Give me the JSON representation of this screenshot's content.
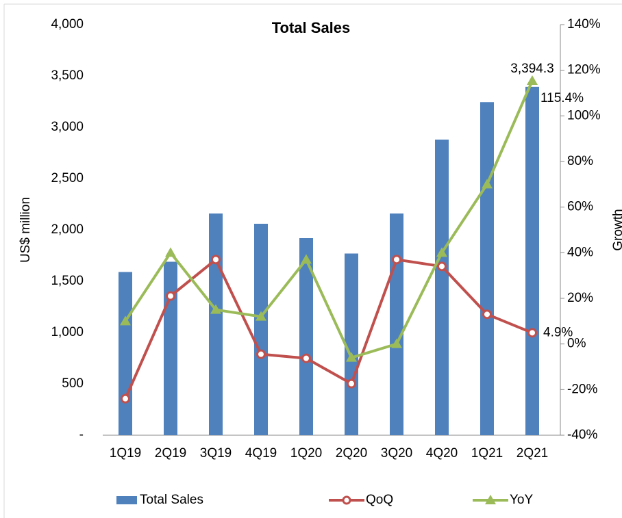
{
  "chart_data": {
    "type": "bar-line",
    "title": "Total Sales",
    "ylabel": "US$ million",
    "y2label": "Growth",
    "categories": [
      "1Q19",
      "2Q19",
      "3Q19",
      "4Q19",
      "1Q20",
      "2Q20",
      "3Q20",
      "4Q20",
      "1Q21",
      "2Q21"
    ],
    "series": [
      {
        "name": "Total Sales",
        "type": "bar",
        "color": "#4f81bd",
        "values": [
          1590,
          1690,
          2160,
          2060,
          1920,
          1770,
          2160,
          2880,
          3245,
          3394.3
        ],
        "value_labels": [
          null,
          null,
          null,
          null,
          null,
          null,
          null,
          null,
          null,
          "3,394.3"
        ]
      },
      {
        "name": "QoQ",
        "type": "line",
        "axis": "y2",
        "color": "#c0504d",
        "marker": "circle",
        "values": [
          -24,
          21,
          37,
          -4.5,
          -6.3,
          -17.4,
          37,
          34,
          13,
          4.9
        ],
        "value_labels": [
          null,
          null,
          null,
          null,
          null,
          null,
          null,
          null,
          null,
          "4.9%"
        ]
      },
      {
        "name": "YoY",
        "type": "line",
        "axis": "y2",
        "color": "#9bbb59",
        "marker": "triangle",
        "values": [
          10,
          40,
          15,
          12,
          37,
          -6,
          0,
          40,
          70,
          115.4
        ],
        "value_labels": [
          null,
          null,
          null,
          null,
          null,
          null,
          null,
          null,
          null,
          "115.4%"
        ]
      }
    ],
    "ylim": [
      0,
      4000
    ],
    "yticks": [
      {
        "value": 0,
        "label": "-"
      },
      {
        "value": 500,
        "label": "500"
      },
      {
        "value": 1000,
        "label": "1,000"
      },
      {
        "value": 1500,
        "label": "1,500"
      },
      {
        "value": 2000,
        "label": "2,000"
      },
      {
        "value": 2500,
        "label": "2,500"
      },
      {
        "value": 3000,
        "label": "3,000"
      },
      {
        "value": 3500,
        "label": "3,500"
      },
      {
        "value": 4000,
        "label": "4,000"
      }
    ],
    "y2lim": [
      -40,
      140
    ],
    "y2ticks": [
      {
        "value": -40,
        "label": "-40%"
      },
      {
        "value": -20,
        "label": "-20%"
      },
      {
        "value": 0,
        "label": "0%"
      },
      {
        "value": 20,
        "label": "20%"
      },
      {
        "value": 40,
        "label": "40%"
      },
      {
        "value": 60,
        "label": "60%"
      },
      {
        "value": 80,
        "label": "80%"
      },
      {
        "value": 100,
        "label": "100%"
      },
      {
        "value": 120,
        "label": "120%"
      },
      {
        "value": 140,
        "label": "140%"
      }
    ],
    "grid": false,
    "legend": "bottom"
  }
}
